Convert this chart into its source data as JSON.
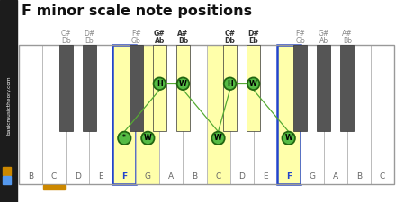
{
  "title": "F minor scale note positions",
  "white_notes": [
    "B",
    "C",
    "D",
    "E",
    "F",
    "G",
    "A",
    "B",
    "C",
    "D",
    "E",
    "F",
    "G",
    "A",
    "B",
    "C"
  ],
  "bk_labels_top": [
    "C#",
    "D#",
    "F#",
    "G#",
    "A#",
    "C#",
    "D#",
    "F#",
    "G#",
    "A#"
  ],
  "bk_labels_bot": [
    "Db",
    "Eb",
    "Gb",
    "Ab",
    "Bb",
    "Db",
    "Eb",
    "Gb",
    "Ab",
    "Bb"
  ],
  "black_key_after_white": [
    1,
    2,
    4,
    5,
    6,
    8,
    9,
    11,
    12,
    13
  ],
  "highlighted_whites": [
    4,
    5,
    8,
    11
  ],
  "highlighted_blacks": [
    3,
    4,
    5,
    6
  ],
  "blue_border_whites": [
    4,
    11
  ],
  "bold_black_keys": [
    3,
    4,
    5,
    6
  ],
  "sidebar_color": "#1c1c1c",
  "sidebar_text_color": "#ffffff",
  "sidebar_text": "basicmusictheory.com",
  "orange_sq_color": "#cc8800",
  "blue_sq_color": "#5599ee",
  "white_key_color": "#ffffff",
  "highlight_yellow": "#ffffaa",
  "black_key_color": "#555555",
  "highlight_yellow_black": "#ffffaa",
  "green_fill": "#55bb44",
  "green_edge": "#226611",
  "blue_border_color": "#2244cc",
  "label_normal_color": "#888888",
  "label_bold_color": "#333333",
  "note_label_normal": "#666666",
  "note_label_blue": "#2244cc",
  "connector_color": "#55aa33",
  "orange_bar_color": "#cc8800",
  "piano_border_color": "#999999",
  "key_border_color": "#bbbbbb"
}
